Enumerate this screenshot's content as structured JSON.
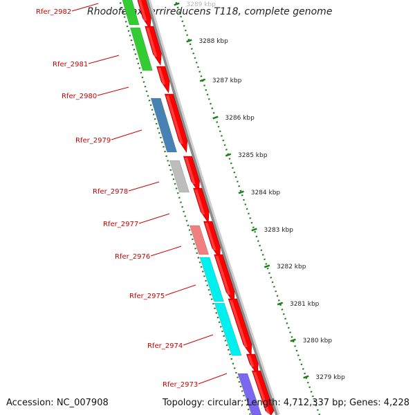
{
  "header": {
    "title": "Rhodoferax ferrireducens T118, complete genome"
  },
  "footer": {
    "accession": "Accession: NC_007908",
    "summary": "Topology: circular; Length: 4,712,337 bp; Genes: 4,228"
  },
  "colors": {
    "forward_strand": "#ff0000",
    "backbone": "#8a8a8a",
    "tick": "#1a7f1a",
    "label": "#cc0000"
  },
  "genes": [
    {
      "name": "Rfer_2982",
      "color": "#33cc33"
    },
    {
      "name": "Rfer_2981",
      "color": "#33cc33"
    },
    {
      "name": "Rfer_2980",
      "color": null
    },
    {
      "name": "Rfer_2979",
      "color": "#4682b4"
    },
    {
      "name": "Rfer_2978",
      "color": "#bdbdbd"
    },
    {
      "name": "Rfer_2977",
      "color": null
    },
    {
      "name": "Rfer_2976",
      "color": "#f08080"
    },
    {
      "name": "Rfer_2975",
      "color": "#00f0f0"
    },
    {
      "name": "Rfer_2974",
      "color": "#00f0f0"
    },
    {
      "name": "Rfer_2973",
      "color": "#7b68ee"
    }
  ],
  "ticks": [
    "3289 kbp",
    "3288 kbp",
    "3287 kbp",
    "3286 kbp",
    "3285 kbp",
    "3284 kbp",
    "3283 kbp",
    "3282 kbp",
    "3281 kbp",
    "3280 kbp",
    "3279 kbp"
  ]
}
